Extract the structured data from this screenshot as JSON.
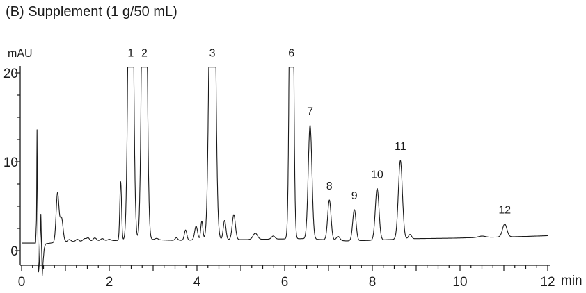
{
  "title": "(B) Supplement (1 g/50 mL)",
  "labels": {
    "y_axis_unit": "mAU",
    "x_axis_unit": "min"
  },
  "chart_data": {
    "type": "line",
    "title": "(B) Supplement (1 g/50 mL)",
    "xlabel": "min",
    "ylabel": "mAU",
    "xlim": [
      0,
      12
    ],
    "ylim": [
      0,
      20
    ],
    "x_ticks_labeled": [
      0,
      2,
      4,
      6,
      8,
      10,
      12
    ],
    "x_minor_step": 0.25,
    "y_ticks_labeled": [
      0,
      10,
      20
    ],
    "y_minor_step": 2.5,
    "grid": false,
    "legend": "none",
    "trace_color": "#1a1a1a",
    "clip_level_mau": 20.65,
    "peaks": [
      {
        "label": "1",
        "t_min": 2.49,
        "height_mau": 60,
        "sigma_min": 0.047,
        "clipped": true
      },
      {
        "label": "2",
        "t_min": 2.8,
        "height_mau": 60,
        "sigma_min": 0.047,
        "clipped": true
      },
      {
        "label": "3",
        "t_min": 4.35,
        "height_mau": 60,
        "sigma_min": 0.055,
        "clipped": true
      },
      {
        "label": "6",
        "t_min": 6.155,
        "height_mau": 60,
        "sigma_min": 0.037,
        "clipped": true
      },
      {
        "label": "7",
        "t_min": 6.58,
        "height_mau": 12.8,
        "sigma_min": 0.042,
        "clipped": false
      },
      {
        "label": "8",
        "t_min": 7.02,
        "height_mau": 4.5,
        "sigma_min": 0.038,
        "clipped": false
      },
      {
        "label": "9",
        "t_min": 7.59,
        "height_mau": 3.5,
        "sigma_min": 0.038,
        "clipped": false
      },
      {
        "label": "10",
        "t_min": 8.11,
        "height_mau": 5.8,
        "sigma_min": 0.042,
        "clipped": false
      },
      {
        "label": "11",
        "t_min": 8.64,
        "height_mau": 8.85,
        "sigma_min": 0.046,
        "clipped": false
      },
      {
        "label": "12",
        "t_min": 11.02,
        "height_mau": 1.45,
        "sigma_min": 0.05,
        "clipped": false
      }
    ],
    "minor_features": [
      {
        "t_min": 0.82,
        "height_mau": 5.5,
        "sigma_min": 0.032
      },
      {
        "t_min": 0.91,
        "height_mau": 2.7,
        "sigma_min": 0.035
      },
      {
        "t_min": 1.09,
        "height_mau": 0.25,
        "sigma_min": 0.035
      },
      {
        "t_min": 1.27,
        "height_mau": 0.25,
        "sigma_min": 0.035
      },
      {
        "t_min": 1.44,
        "height_mau": 0.3,
        "sigma_min": 0.04
      },
      {
        "t_min": 1.52,
        "height_mau": 0.35,
        "sigma_min": 0.03
      },
      {
        "t_min": 1.67,
        "height_mau": 0.35,
        "sigma_min": 0.04
      },
      {
        "t_min": 1.84,
        "height_mau": 0.25,
        "sigma_min": 0.04
      },
      {
        "t_min": 2.0,
        "height_mau": 0.15,
        "sigma_min": 0.04
      },
      {
        "t_min": 2.26,
        "height_mau": 6.6,
        "sigma_min": 0.02
      },
      {
        "t_min": 3.08,
        "height_mau": 0.15,
        "sigma_min": 0.035
      },
      {
        "t_min": 3.53,
        "height_mau": 0.3,
        "sigma_min": 0.03
      },
      {
        "t_min": 3.74,
        "height_mau": 1.15,
        "sigma_min": 0.028
      },
      {
        "t_min": 3.98,
        "height_mau": 1.55,
        "sigma_min": 0.033
      },
      {
        "t_min": 4.11,
        "height_mau": 2.1,
        "sigma_min": 0.024
      },
      {
        "t_min": 4.63,
        "height_mau": 2.15,
        "sigma_min": 0.03
      },
      {
        "t_min": 4.84,
        "height_mau": 2.8,
        "sigma_min": 0.036
      },
      {
        "t_min": 5.33,
        "height_mau": 0.7,
        "sigma_min": 0.05
      },
      {
        "t_min": 5.74,
        "height_mau": 0.35,
        "sigma_min": 0.04
      },
      {
        "t_min": 7.22,
        "height_mau": 0.45,
        "sigma_min": 0.04
      },
      {
        "t_min": 8.86,
        "height_mau": 0.5,
        "sigma_min": 0.035
      },
      {
        "t_min": 10.5,
        "height_mau": 0.15,
        "sigma_min": 0.08
      }
    ],
    "baseline_points": [
      [
        0,
        0.85
      ],
      [
        0.3,
        0.85
      ],
      [
        0.52,
        0.75
      ],
      [
        0.8,
        0.95
      ],
      [
        1.05,
        1.0
      ],
      [
        2.2,
        1.15
      ],
      [
        3.0,
        1.25
      ],
      [
        3.5,
        1.15
      ],
      [
        4.4,
        1.25
      ],
      [
        5.15,
        1.25
      ],
      [
        6.4,
        1.35
      ],
      [
        6.85,
        1.25
      ],
      [
        7.4,
        1.1
      ],
      [
        7.9,
        1.15
      ],
      [
        8.4,
        1.25
      ],
      [
        9.0,
        1.35
      ],
      [
        9.8,
        1.4
      ],
      [
        10.6,
        1.5
      ],
      [
        11.5,
        1.6
      ],
      [
        12,
        1.68
      ]
    ],
    "injection_disturbance_points": [
      [
        0.32,
        0.95
      ],
      [
        0.34,
        3.5
      ],
      [
        0.352,
        13.6
      ],
      [
        0.362,
        7.0
      ],
      [
        0.378,
        -1.0
      ],
      [
        0.388,
        -2.4
      ],
      [
        0.402,
        -1.6
      ],
      [
        0.425,
        1.5
      ],
      [
        0.44,
        4.1
      ],
      [
        0.458,
        0.0
      ],
      [
        0.472,
        -2.8
      ],
      [
        0.492,
        -1.2
      ],
      [
        0.515,
        0.2
      ],
      [
        0.545,
        0.72
      ],
      [
        0.56,
        0.76
      ]
    ]
  }
}
